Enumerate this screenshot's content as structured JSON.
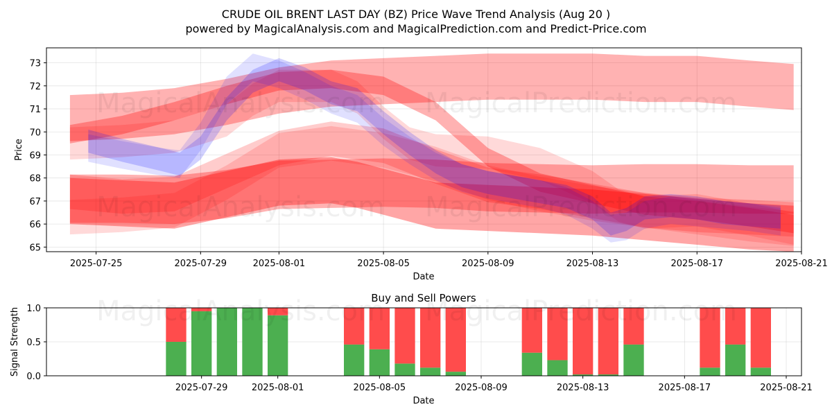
{
  "figure": {
    "title_line1": "CRUDE OIL BRENT LAST DAY (BZ) Price Wave Trend Analysis (Aug 20 )",
    "title_line2": "powered by MagicalAnalysis.com and MagicalPrediction.com and Predict-Price.com",
    "watermark_left": "MagicalAnalysis.com",
    "watermark_right": "MagicalPrediction.com"
  },
  "chart_data": [
    {
      "type": "area",
      "title": "CRUDE OIL BRENT LAST DAY (BZ) Price Wave Trend Analysis (Aug 20 )",
      "xlabel": "Date",
      "ylabel": "Price",
      "xlim_days": [
        -1.9,
        27.0
      ],
      "x_origin": "2025-07-25",
      "ylim": [
        64.8,
        73.65
      ],
      "xticks": [
        {
          "day": 0,
          "label": "2025-07-25"
        },
        {
          "day": 4,
          "label": "2025-07-29"
        },
        {
          "day": 7,
          "label": "2025-08-01"
        },
        {
          "day": 11,
          "label": "2025-08-05"
        },
        {
          "day": 15,
          "label": "2025-08-09"
        },
        {
          "day": 19,
          "label": "2025-08-13"
        },
        {
          "day": 23,
          "label": "2025-08-17"
        },
        {
          "day": 27,
          "label": "2025-08-21"
        }
      ],
      "yticks": [
        65,
        66,
        67,
        68,
        69,
        70,
        71,
        72,
        73
      ],
      "grid": true,
      "colors": {
        "red": "#ff0000",
        "blue": "#0000ff"
      },
      "series": [
        {
          "name": "red-upper-band",
          "color": "red",
          "alpha": 0.3,
          "x": [
            -1,
            1,
            3,
            5,
            7,
            9,
            11,
            13,
            15,
            17,
            19,
            21,
            23,
            25,
            26.7
          ],
          "center": [
            70.6,
            70.7,
            70.9,
            71.3,
            71.8,
            72.1,
            72.2,
            72.3,
            72.4,
            72.4,
            72.4,
            72.3,
            72.3,
            72.1,
            71.95
          ],
          "half_width": 1.0
        },
        {
          "name": "red-lower-band",
          "color": "red",
          "alpha": 0.3,
          "x": [
            -1,
            1,
            3,
            5,
            7,
            9,
            11,
            13,
            15,
            17,
            19,
            21,
            23,
            25,
            26.7
          ],
          "center": [
            67.1,
            67.1,
            67.05,
            67.3,
            67.7,
            67.75,
            67.8,
            67.75,
            67.6,
            67.55,
            67.5,
            67.55,
            67.55,
            67.5,
            67.5
          ],
          "half_width": 1.05
        },
        {
          "name": "red-wave-1",
          "color": "red",
          "alpha": 0.35,
          "x": [
            -1,
            1,
            3,
            5,
            7,
            9,
            10,
            11,
            13,
            15,
            17,
            19,
            20,
            21,
            23,
            25,
            26.7
          ],
          "center": [
            67.0,
            66.9,
            66.8,
            67.3,
            67.8,
            67.9,
            67.7,
            67.4,
            66.8,
            66.7,
            66.6,
            66.5,
            66.4,
            66.3,
            66.1,
            65.9,
            65.8
          ],
          "half_width": 1.0
        },
        {
          "name": "red-wave-2",
          "color": "red",
          "alpha": 0.2,
          "x": [
            -1,
            1,
            3,
            5,
            7,
            9,
            11,
            13,
            15,
            17,
            19,
            21,
            23,
            25,
            26.7
          ],
          "center": [
            67.4,
            67.2,
            67.3,
            68.3,
            69.3,
            69.7,
            69.4,
            68.5,
            67.7,
            67.4,
            67.0,
            66.6,
            66.4,
            66.3,
            66.2
          ],
          "half_width": 0.75
        },
        {
          "name": "red-wave-3",
          "color": "red",
          "alpha": 0.15,
          "x": [
            -1,
            1,
            3,
            5,
            6,
            7,
            9,
            10,
            11,
            12,
            13,
            15,
            17,
            19,
            20,
            21,
            23,
            25,
            26.7
          ],
          "center": [
            69.5,
            69.6,
            69.8,
            70.5,
            71.4,
            72.0,
            72.0,
            71.5,
            70.4,
            69.5,
            69.2,
            69.1,
            68.6,
            67.6,
            66.8,
            66.5,
            66.6,
            66.2,
            65.8
          ],
          "half_width": 0.7
        },
        {
          "name": "red-wave-4",
          "color": "red",
          "alpha": 0.15,
          "x": [
            -1,
            1,
            3,
            5,
            7,
            9,
            11,
            13,
            15,
            17,
            19,
            21,
            23,
            25,
            26.7
          ],
          "center": [
            66.3,
            66.4,
            66.6,
            67.8,
            69.2,
            69.5,
            69.2,
            68.6,
            67.8,
            67.3,
            66.9,
            66.6,
            66.3,
            66.0,
            65.8
          ],
          "half_width": 0.75
        },
        {
          "name": "red-wave-5",
          "color": "red",
          "alpha": 0.3,
          "x": [
            -1,
            1,
            3,
            5,
            7,
            9,
            11,
            13,
            15,
            17,
            19,
            21,
            23,
            25,
            26.7
          ],
          "center": [
            69.9,
            70.3,
            70.9,
            71.6,
            72.2,
            72.3,
            72.0,
            70.9,
            68.9,
            67.8,
            67.3,
            66.8,
            66.6,
            66.3,
            66.0
          ],
          "half_width": 0.4
        },
        {
          "name": "blue-wave-1",
          "color": "blue",
          "alpha": 0.18,
          "x": [
            -0.3,
            1,
            2.5,
            3.2,
            4,
            5,
            6,
            7,
            8,
            9,
            10,
            11,
            12,
            13,
            14,
            15,
            16,
            17,
            18,
            19,
            19.7,
            20.3,
            21,
            22,
            23,
            24,
            25,
            26.2
          ],
          "center": [
            69.6,
            69.2,
            68.8,
            68.6,
            69.3,
            71.0,
            72.2,
            72.7,
            72.3,
            71.7,
            71.4,
            70.4,
            69.5,
            68.7,
            68.1,
            67.8,
            67.6,
            67.4,
            67.2,
            66.7,
            66.0,
            66.2,
            66.7,
            66.8,
            66.7,
            66.5,
            66.4,
            66.3
          ],
          "half_width": 0.5
        },
        {
          "name": "blue-wave-2",
          "color": "blue",
          "alpha": 0.12,
          "x": [
            -0.3,
            1,
            2.5,
            3.2,
            4,
            5,
            6,
            7,
            8,
            9,
            10,
            11,
            12,
            13,
            14,
            15,
            16,
            17,
            18,
            19,
            19.7,
            20.3,
            21,
            22,
            23,
            24,
            25,
            26.2
          ],
          "center": [
            69.3,
            69.0,
            68.7,
            68.6,
            69.8,
            71.8,
            72.8,
            72.5,
            72.0,
            71.4,
            71.0,
            70.0,
            69.2,
            68.5,
            68.0,
            67.7,
            67.5,
            67.3,
            67.0,
            66.4,
            65.8,
            65.9,
            66.4,
            66.6,
            66.5,
            66.4,
            66.3,
            66.1
          ],
          "half_width": 0.6
        }
      ]
    },
    {
      "type": "bar",
      "title": "Buy and Sell Powers",
      "xlabel": "Date",
      "ylabel": "Signal Strength",
      "xlim_days": [
        -2.1,
        27.6
      ],
      "ylim": [
        0,
        1.0
      ],
      "x_origin": "2025-07-25",
      "xticks": [
        {
          "day": 4,
          "label": "2025-07-29"
        },
        {
          "day": 7,
          "label": "2025-08-01"
        },
        {
          "day": 11,
          "label": "2025-08-05"
        },
        {
          "day": 15,
          "label": "2025-08-09"
        },
        {
          "day": 19,
          "label": "2025-08-13"
        },
        {
          "day": 23,
          "label": "2025-08-17"
        },
        {
          "day": 27,
          "label": "2025-08-21"
        }
      ],
      "yticks": [
        {
          "value": 0.0,
          "label": "0.0"
        },
        {
          "value": 0.5,
          "label": "0.5"
        },
        {
          "value": 1.0,
          "label": "1.0"
        }
      ],
      "grid": true,
      "categories": [
        "2025-07-28",
        "2025-07-29",
        "2025-07-30",
        "2025-07-31",
        "2025-08-01",
        "2025-08-04",
        "2025-08-05",
        "2025-08-06",
        "2025-08-07",
        "2025-08-08",
        "2025-08-11",
        "2025-08-12",
        "2025-08-13",
        "2025-08-14",
        "2025-08-15",
        "2025-08-18",
        "2025-08-19",
        "2025-08-20"
      ],
      "days": [
        3,
        4,
        5,
        6,
        7,
        10,
        11,
        12,
        13,
        14,
        17,
        18,
        19,
        20,
        21,
        24,
        25,
        26
      ],
      "series": [
        {
          "name": "Buy",
          "color": "#4caf50",
          "values": [
            0.5,
            0.95,
            1.0,
            1.0,
            0.89,
            0.46,
            0.39,
            0.18,
            0.12,
            0.06,
            0.34,
            0.23,
            0.02,
            0.02,
            0.46,
            0.12,
            0.46,
            0.12
          ]
        },
        {
          "name": "Sell",
          "color": "#ff4c4c",
          "values": [
            0.5,
            0.05,
            0.0,
            0.0,
            0.11,
            0.54,
            0.61,
            0.82,
            0.88,
            0.94,
            0.66,
            0.77,
            0.98,
            0.98,
            0.54,
            0.88,
            0.54,
            0.88
          ]
        }
      ]
    }
  ]
}
